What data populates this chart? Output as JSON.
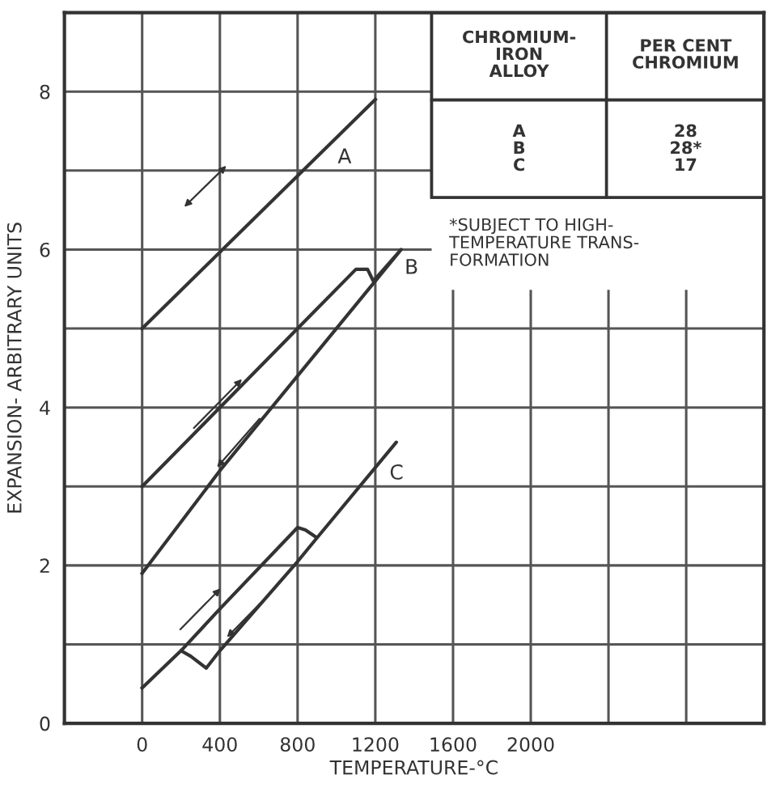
{
  "chart_data": {
    "type": "line",
    "xlabel": "TEMPERATURE-°C",
    "ylabel": "EXPANSION- ARBITRARY UNITS",
    "xlim": [
      -400,
      3200
    ],
    "ylim": [
      0,
      9
    ],
    "xticks": [
      0,
      400,
      800,
      1200,
      1600,
      2000,
      {
        "value": 2400,
        "label": null
      },
      {
        "value": 2800,
        "label": null
      }
    ],
    "yticks": [
      0,
      {
        "value": 1,
        "label": null
      },
      2,
      {
        "value": 3,
        "label": null
      },
      4,
      {
        "value": 5,
        "label": null
      },
      6,
      {
        "value": 7,
        "label": null
      },
      8
    ],
    "grid": true,
    "marker": "none",
    "line_style": "solid",
    "series": [
      {
        "name": "A",
        "color": "#333333",
        "x": [
          0,
          1200
        ],
        "values": [
          5,
          7.9
        ]
      },
      {
        "name": "B",
        "color": "#333333",
        "x": [
          0,
          400,
          800,
          1100,
          1160,
          1190,
          1333,
          400,
          0
        ],
        "values": [
          3,
          4,
          5,
          5.75,
          5.75,
          5.6,
          6.0,
          3.2,
          1.9
        ]
      },
      {
        "name": "C",
        "color": "#333333",
        "x": [
          0,
          200,
          400,
          800,
          840,
          900,
          1308,
          900,
          800,
          400,
          330,
          250,
          200
        ],
        "values": [
          0.45,
          0.92,
          1.45,
          2.48,
          2.45,
          2.35,
          3.56,
          2.35,
          2.05,
          0.92,
          0.7,
          0.85,
          0.92
        ]
      }
    ],
    "annotations": [
      "CHROMIUM-\nIRON\nALLOY",
      "PER CENT\nCHROMIUM",
      "A\nB\nC",
      "28\n28*\n17",
      "*SUBJECT TO HIGH-\nTEMPERATURE TRANS-\nFORMATION"
    ]
  }
}
